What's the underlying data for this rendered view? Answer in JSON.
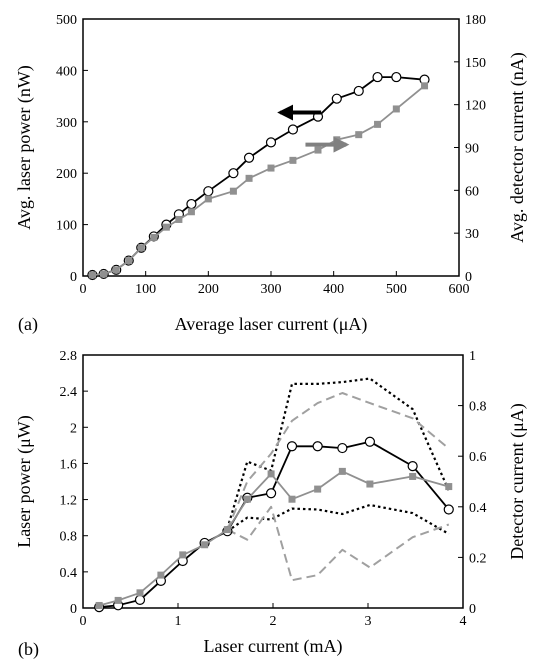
{
  "chart_data": [
    {
      "type": "line",
      "panel_label": "(a)",
      "title": "",
      "xlabel": "Average laser current (μA)",
      "ylabel": "Avg. laser power (nW)",
      "y2label": "Avg. detector current  (nA)",
      "xlim": [
        0,
        600
      ],
      "ylim": [
        0,
        500
      ],
      "y2lim": [
        0,
        180
      ],
      "xticks": [
        0,
        100,
        200,
        300,
        400,
        500,
        600
      ],
      "yticks": [
        0,
        100,
        200,
        300,
        400,
        500
      ],
      "y2ticks": [
        0,
        30,
        60,
        90,
        120,
        150,
        180
      ],
      "grid": false,
      "series": [
        {
          "axis": "left",
          "color": "#000000",
          "marker": "circle",
          "x": [
            15,
            33,
            53,
            73,
            93,
            113,
            133,
            153,
            173,
            200,
            240,
            265,
            300,
            335,
            375,
            405,
            440,
            470,
            500,
            545
          ],
          "y": [
            2,
            4,
            12,
            30,
            55,
            77,
            100,
            120,
            140,
            165,
            200,
            230,
            260,
            285,
            310,
            345,
            360,
            387,
            387,
            382
          ]
        },
        {
          "axis": "right",
          "color": "#909090",
          "marker": "square",
          "x": [
            15,
            33,
            53,
            73,
            93,
            113,
            133,
            153,
            173,
            200,
            240,
            265,
            300,
            335,
            375,
            405,
            440,
            470,
            500,
            545
          ],
          "y": [
            0.7,
            1.4,
            4.3,
            10.8,
            19.8,
            27,
            34.2,
            39.6,
            45,
            54,
            59.4,
            68.4,
            75.6,
            81,
            88.2,
            95.4,
            99,
            106.2,
            117,
            133.2
          ]
        }
      ],
      "annotations": [
        {
          "type": "arrow",
          "direction": "left",
          "color": "#000000",
          "x": [
            380,
            315
          ],
          "y": [
            318,
            318
          ]
        },
        {
          "type": "arrow",
          "direction": "right",
          "color": "#808080",
          "x": [
            355,
            420
          ],
          "y": [
            92,
            92
          ],
          "axis": "right"
        }
      ]
    },
    {
      "type": "line",
      "panel_label": "(b)",
      "title": "",
      "xlabel": "Laser current (mA)",
      "ylabel": "Laser power  (μW)",
      "y2label": "Detector current  (μA)",
      "xlim": [
        0,
        4
      ],
      "ylim": [
        0,
        2.8
      ],
      "y2lim": [
        0,
        1
      ],
      "xticks": [
        0,
        1,
        2,
        3,
        4
      ],
      "yticks": [
        0,
        0.4,
        0.8,
        1.2,
        1.6,
        2,
        2.4,
        2.8
      ],
      "y2ticks": [
        0,
        0.2,
        0.4,
        0.6,
        0.8,
        1
      ],
      "grid": false,
      "series": [
        {
          "axis": "left",
          "color": "#000000",
          "marker": "circle",
          "style": "solid",
          "x": [
            0.17,
            0.37,
            0.6,
            0.82,
            1.05,
            1.28,
            1.52,
            1.73,
            1.98,
            2.2,
            2.47,
            2.73,
            3.02,
            3.47,
            3.85
          ],
          "y": [
            0.01,
            0.03,
            0.09,
            0.3,
            0.52,
            0.72,
            0.85,
            1.22,
            1.27,
            1.79,
            1.79,
            1.77,
            1.84,
            1.57,
            1.09
          ]
        },
        {
          "axis": "right",
          "color": "#909090",
          "marker": "square",
          "style": "solid",
          "x": [
            0.17,
            0.37,
            0.6,
            0.82,
            1.05,
            1.28,
            1.52,
            1.73,
            1.98,
            2.2,
            2.47,
            2.73,
            3.02,
            3.47,
            3.85
          ],
          "y": [
            0.01,
            0.03,
            0.06,
            0.13,
            0.21,
            0.25,
            0.31,
            0.43,
            0.53,
            0.43,
            0.47,
            0.54,
            0.49,
            0.52,
            0.48
          ]
        },
        {
          "axis": "left",
          "color": "#000000",
          "marker": "none",
          "style": "dotted",
          "x": [
            1.52,
            1.73,
            1.98,
            2.2,
            2.47,
            2.73,
            3.02,
            3.47,
            3.85
          ],
          "y": [
            0.88,
            1.62,
            1.52,
            2.48,
            2.48,
            2.5,
            2.54,
            2.2,
            1.3
          ]
        },
        {
          "axis": "left",
          "color": "#000000",
          "marker": "none",
          "style": "dotted",
          "x": [
            1.52,
            1.73,
            1.98,
            2.2,
            2.47,
            2.73,
            3.02,
            3.47,
            3.85
          ],
          "y": [
            0.85,
            1.0,
            0.98,
            1.1,
            1.09,
            1.04,
            1.14,
            1.05,
            0.82
          ]
        },
        {
          "axis": "right",
          "color": "#a0a0a0",
          "marker": "none",
          "style": "dashed",
          "x": [
            1.52,
            1.73,
            1.98,
            2.2,
            2.47,
            2.73,
            3.02,
            3.47,
            3.85
          ],
          "y": [
            0.31,
            0.5,
            0.61,
            0.74,
            0.81,
            0.85,
            0.81,
            0.75,
            0.63
          ]
        },
        {
          "axis": "right",
          "color": "#a0a0a0",
          "marker": "none",
          "style": "dashed",
          "x": [
            1.52,
            1.73,
            1.98,
            2.2,
            2.47,
            2.73,
            3.02,
            3.47,
            3.85
          ],
          "y": [
            0.31,
            0.27,
            0.4,
            0.11,
            0.13,
            0.23,
            0.16,
            0.28,
            0.33
          ]
        }
      ]
    }
  ]
}
